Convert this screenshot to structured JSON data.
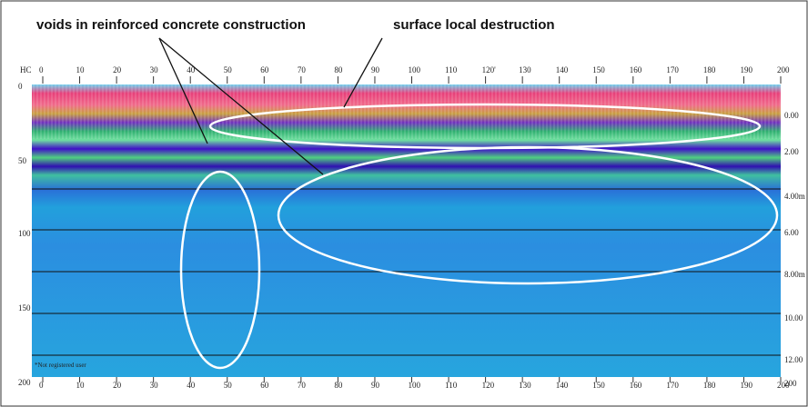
{
  "annotations": {
    "voids": "voids in reinforced concrete construction",
    "surface": "surface local destruction"
  },
  "axes": {
    "corner": "HC",
    "top": [
      0,
      10,
      20,
      30,
      40,
      50,
      60,
      70,
      80,
      90,
      100,
      110,
      "120'",
      130,
      140,
      150,
      160,
      170,
      180,
      190,
      200
    ],
    "bottom": [
      0,
      10,
      20,
      30,
      40,
      50,
      60,
      70,
      80,
      90,
      100,
      110,
      120,
      130,
      140,
      150,
      160,
      170,
      180,
      190,
      200
    ],
    "left": [
      0,
      50,
      100,
      150,
      200
    ],
    "right": [
      "0.00",
      "2.00",
      "4.00m",
      "6.00",
      "8.00m",
      "10.00",
      "12.00",
      "200"
    ]
  },
  "watermark": "*Not registered user"
}
